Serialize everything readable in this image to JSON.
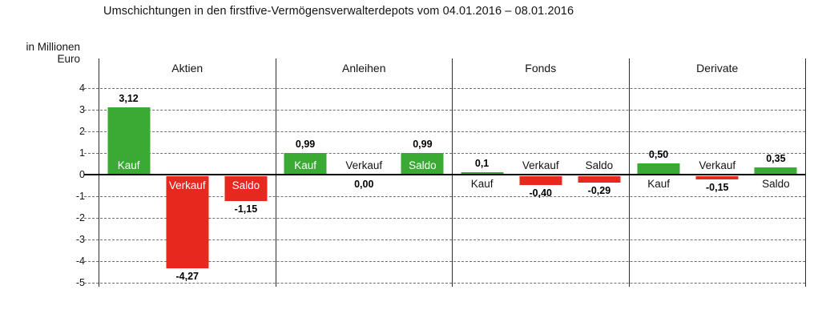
{
  "title": "Umschichtungen in den firstfive-Vermögensverwalterdepots vom 04.01.2016 – 08.01.2016",
  "y_axis": {
    "label_line1": "in Millionen",
    "label_line2": "Euro",
    "ticks": [
      4,
      3,
      2,
      1,
      0,
      -1,
      -2,
      -3,
      -4,
      -5
    ]
  },
  "colors": {
    "positive": "#3aaa35",
    "negative": "#e6281e"
  },
  "chart_data": {
    "type": "bar",
    "title": "Umschichtungen in den firstfive-Vermögensverwalterdepots vom 04.01.2016 – 08.01.2016",
    "xlabel": "",
    "ylabel": "in Millionen Euro",
    "ylim": [
      -5,
      4
    ],
    "grid": "horizontal-dashed",
    "legend_position": "none",
    "categories": [
      "Aktien",
      "Anleihen",
      "Fonds",
      "Derivate"
    ],
    "bar_labels": [
      "Kauf",
      "Verkauf",
      "Saldo"
    ],
    "series": [
      {
        "name": "Kauf",
        "values": [
          3.12,
          0.99,
          0.1,
          0.5
        ]
      },
      {
        "name": "Verkauf",
        "values": [
          -4.27,
          0.0,
          -0.4,
          -0.15
        ]
      },
      {
        "name": "Saldo",
        "values": [
          -1.15,
          0.99,
          -0.29,
          0.35
        ]
      }
    ],
    "groups": [
      {
        "name": "Aktien",
        "bars": [
          {
            "label": "Kauf",
            "value": 3.12,
            "display": "3,12"
          },
          {
            "label": "Verkauf",
            "value": -4.27,
            "display": "-4,27"
          },
          {
            "label": "Saldo",
            "value": -1.15,
            "display": "-1,15"
          }
        ]
      },
      {
        "name": "Anleihen",
        "bars": [
          {
            "label": "Kauf",
            "value": 0.99,
            "display": "0,99"
          },
          {
            "label": "Verkauf",
            "value": 0.0,
            "display": "0,00"
          },
          {
            "label": "Saldo",
            "value": 0.99,
            "display": "0,99"
          }
        ]
      },
      {
        "name": "Fonds",
        "bars": [
          {
            "label": "Kauf",
            "value": 0.1,
            "display": "0,1"
          },
          {
            "label": "Verkauf",
            "value": -0.4,
            "display": "-0,40"
          },
          {
            "label": "Saldo",
            "value": -0.29,
            "display": "-0,29"
          }
        ]
      },
      {
        "name": "Derivate",
        "bars": [
          {
            "label": "Kauf",
            "value": 0.5,
            "display": "0,50"
          },
          {
            "label": "Verkauf",
            "value": -0.15,
            "display": "-0,15"
          },
          {
            "label": "Saldo",
            "value": 0.35,
            "display": "0,35"
          }
        ]
      }
    ]
  }
}
